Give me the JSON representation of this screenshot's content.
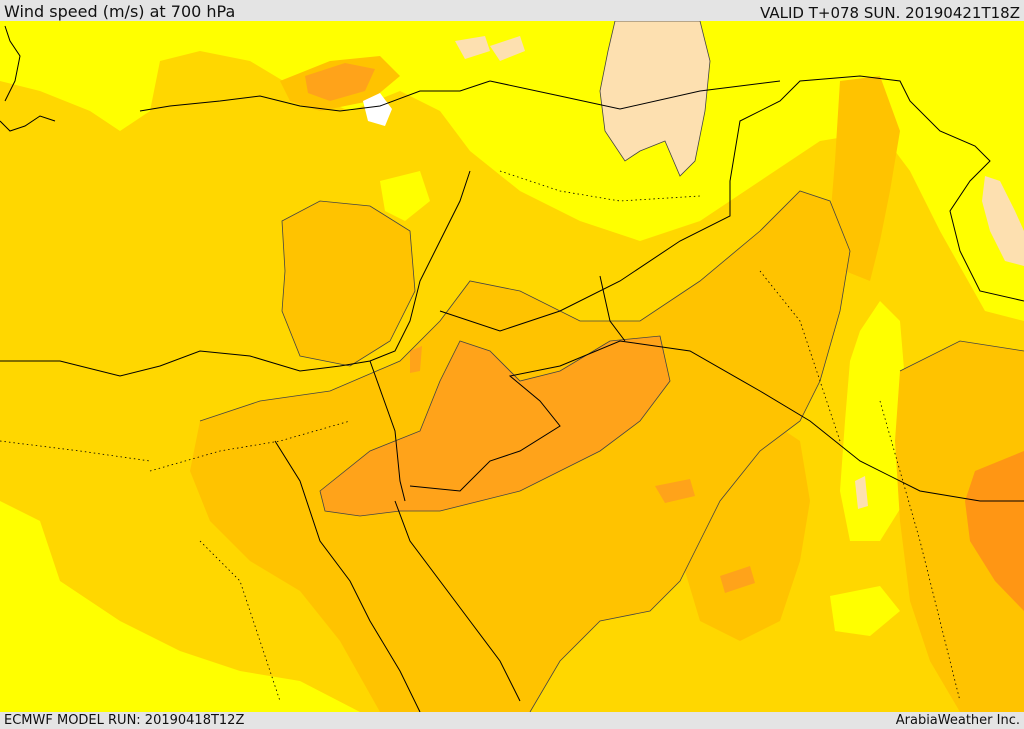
{
  "header": {
    "title": "Wind speed (m/s) at 700 hPa",
    "valid": "VALID T+078 SUN. 20190421T18Z"
  },
  "footer": {
    "model_run": "ECMWF MODEL RUN: 20190418T12Z",
    "credit": "ArabiaWeather Inc."
  },
  "colors": {
    "white": "#ffffff",
    "peach": "#fde0b0",
    "yellow": "#ffff00",
    "gold": "#ffd700",
    "amber": "#ffc300",
    "orange": "#ffa31a",
    "dark_orange": "#ff9614",
    "border_line": "#000000",
    "contour_line": "#444444"
  }
}
